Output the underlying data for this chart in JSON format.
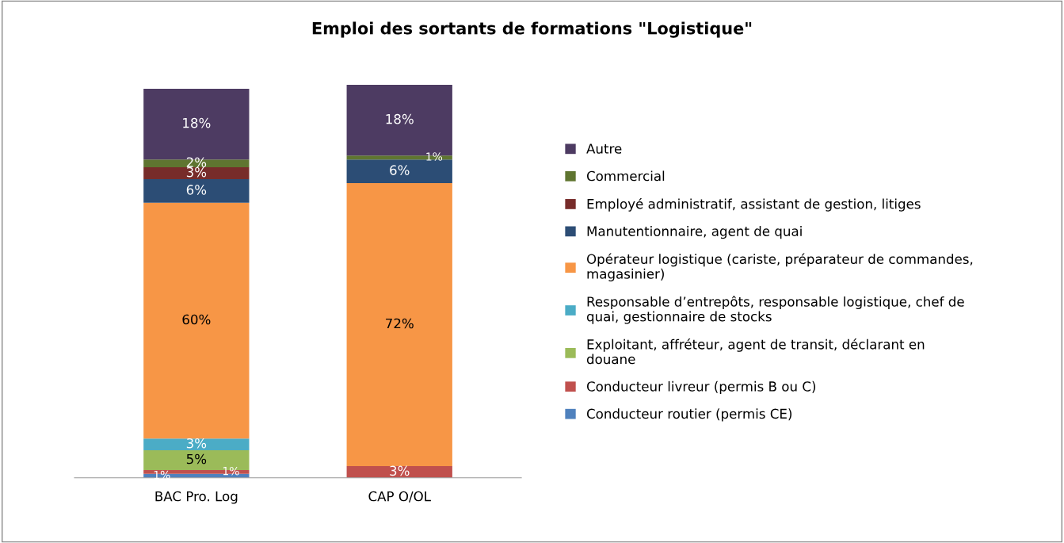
{
  "chart_data": {
    "type": "bar",
    "stacked": true,
    "title": "Emploi des sortants de formations \"Logistique\"",
    "categories": [
      "BAC Pro. Log",
      "CAP O/OL"
    ],
    "series": [
      {
        "name": "Conducteur routier (permis CE)",
        "color": "#4f81bd",
        "values": [
          1,
          null
        ],
        "value_labels": [
          "1%",
          null
        ]
      },
      {
        "name": "Conducteur livreur (permis B ou C)",
        "color": "#c0504d",
        "values": [
          1,
          3
        ],
        "value_labels": [
          "1%",
          "3%"
        ]
      },
      {
        "name": "Exploitant, affréteur, agent de transit, déclarant en douane",
        "color": "#9bbb59",
        "values": [
          5,
          null
        ],
        "value_labels": [
          "5%",
          null
        ]
      },
      {
        "name": "Responsable d’entrepôts, responsable logistique, chef de quai, gestionnaire de stocks",
        "color": "#4bacc6",
        "values": [
          3,
          null
        ],
        "value_labels": [
          "3%",
          null
        ]
      },
      {
        "name": "Opérateur logistique (cariste, préparateur de commandes, magasinier)",
        "color": "#f79646",
        "values": [
          60,
          72
        ],
        "value_labels": [
          "60%",
          "72%"
        ]
      },
      {
        "name": "Manutentionnaire, agent de quai",
        "color": "#2c4d75",
        "values": [
          6,
          6
        ],
        "value_labels": [
          "6%",
          "6%"
        ]
      },
      {
        "name": "Employé administratif, assistant de gestion, litiges",
        "color": "#772c2a",
        "values": [
          3,
          null
        ],
        "value_labels": [
          "3%",
          null
        ]
      },
      {
        "name": "Commercial",
        "color": "#5f7530",
        "values": [
          2,
          1
        ],
        "value_labels": [
          "2%",
          "1%"
        ]
      },
      {
        "name": "Autre",
        "color": "#4d3b62",
        "values": [
          18,
          18
        ],
        "value_labels": [
          "18%",
          "18%"
        ]
      }
    ],
    "legend": "right",
    "grid": false
  }
}
